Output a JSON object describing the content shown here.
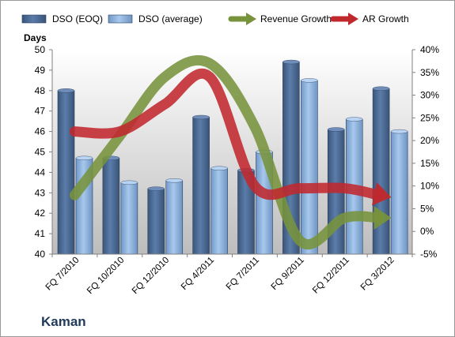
{
  "company": "Kaman",
  "chart_data": {
    "type": "bar",
    "categories": [
      "FQ 7/2010",
      "FQ 10/2010",
      "FQ 12/2010",
      "FQ 4/2011",
      "FQ 7/2011",
      "FQ 9/2011",
      "FQ 12/2011",
      "FQ 3/2012"
    ],
    "series": [
      {
        "name": "DSO (EOQ)",
        "kind": "bar",
        "axis": "left",
        "color": "#4f6d98",
        "values": [
          48.0,
          44.7,
          43.2,
          46.7,
          44.1,
          49.4,
          46.1,
          48.1
        ]
      },
      {
        "name": "DSO (average)",
        "kind": "bar",
        "axis": "left",
        "color": "#8db4e2",
        "values": [
          44.7,
          43.5,
          43.6,
          44.2,
          45.0,
          48.5,
          46.6,
          46.0
        ]
      },
      {
        "name": "Revenue Growth",
        "kind": "arrow-line",
        "axis": "right",
        "color": "#77933c",
        "values": [
          8,
          21,
          34,
          37,
          23,
          -2,
          3,
          3
        ]
      },
      {
        "name": "AR Growth",
        "kind": "arrow-line",
        "axis": "right",
        "color": "#c0282d",
        "values": [
          22,
          22,
          28,
          34,
          10,
          9.5,
          9.5,
          7.5
        ]
      }
    ],
    "left_axis": {
      "label": "Days",
      "min": 40,
      "max": 50,
      "ticks": [
        "40",
        "41",
        "42",
        "43",
        "44",
        "45",
        "46",
        "47",
        "48",
        "49",
        "50"
      ]
    },
    "right_axis": {
      "label": "",
      "min": -5,
      "max": 40,
      "ticks": [
        "-5%",
        "0%",
        "5%",
        "10%",
        "15%",
        "20%",
        "25%",
        "30%",
        "35%",
        "40%"
      ]
    },
    "legend": "top",
    "grid": false
  }
}
